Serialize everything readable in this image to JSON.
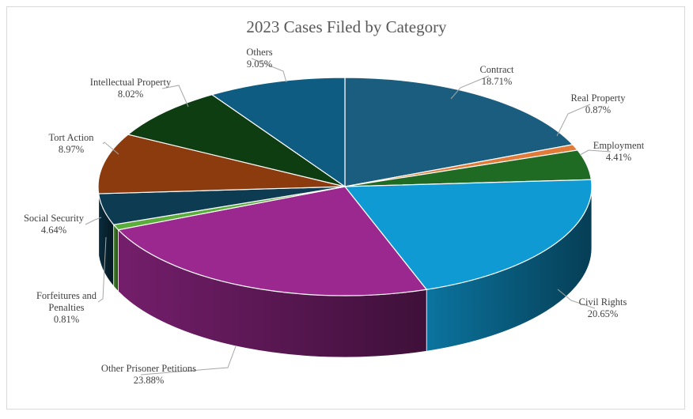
{
  "chart_data": {
    "type": "pie",
    "title": "2023 Cases Filed by Category",
    "three_d": true,
    "legend": "none",
    "slices": [
      {
        "label": "Contract",
        "value": 18.71,
        "display": "18.71%",
        "color": "#1b5d7f"
      },
      {
        "label": "Real Property",
        "value": 0.87,
        "display": "0.87%",
        "color": "#e07b39"
      },
      {
        "label": "Employment",
        "value": 4.41,
        "display": "4.41%",
        "color": "#1f6b24"
      },
      {
        "label": "Civil Rights",
        "value": 20.65,
        "display": "20.65%",
        "color": "#0f9ad4"
      },
      {
        "label": "Other Prisoner Petitions",
        "value": 23.88,
        "display": "23.88%",
        "color": "#9b288f"
      },
      {
        "label": "Forfeitures and Penalties",
        "value": 0.81,
        "display": "0.81%",
        "color": "#5aad3a"
      },
      {
        "label": "Social Security",
        "value": 4.64,
        "display": "4.64%",
        "color": "#0d3b52"
      },
      {
        "label": "Tort Action",
        "value": 8.97,
        "display": "8.97%",
        "color": "#8c3b0f"
      },
      {
        "label": "Intellectual  Property",
        "value": 8.02,
        "display": "8.02%",
        "color": "#0f3d12"
      },
      {
        "label": "Others",
        "value": 9.05,
        "display": "9.05%",
        "color": "#0e5c82"
      }
    ]
  }
}
